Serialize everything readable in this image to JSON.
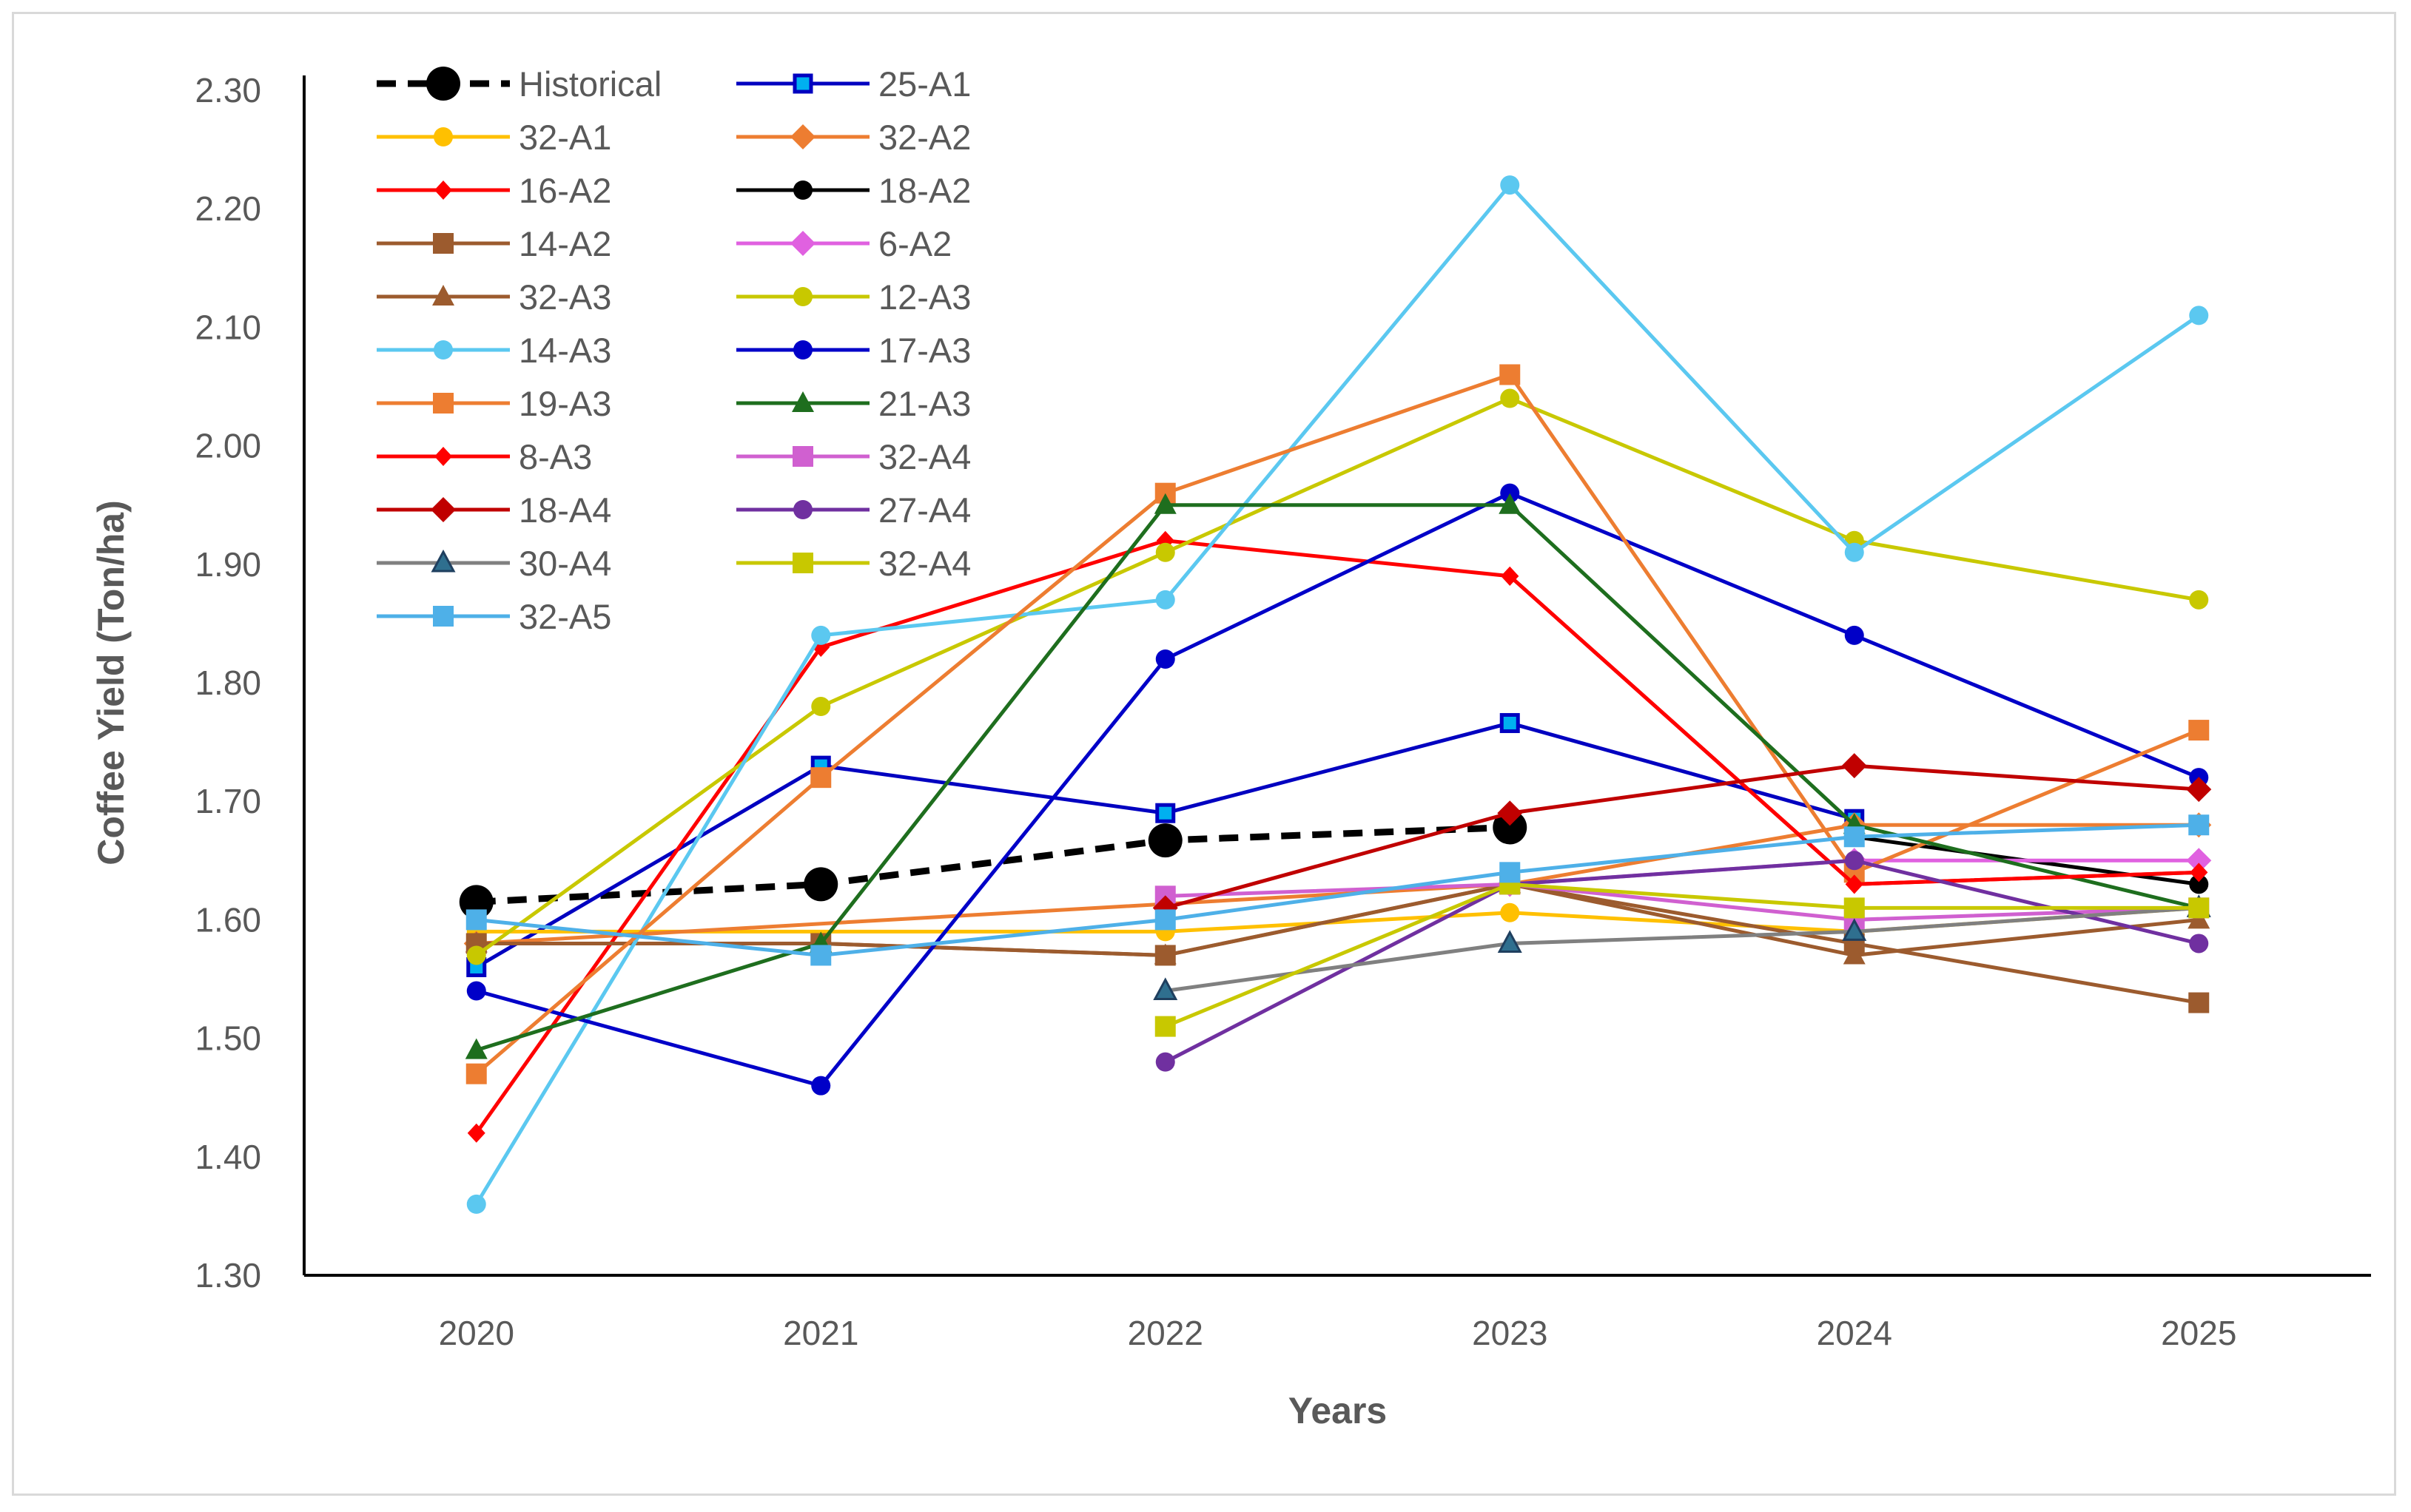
{
  "chart_data": {
    "type": "line",
    "title": "",
    "xlabel": "Years",
    "ylabel": "Coffee Yield (Ton/ha)",
    "ylim": [
      1.3,
      2.3
    ],
    "y_ticks": [
      "1.30",
      "1.40",
      "1.50",
      "1.60",
      "1.70",
      "1.80",
      "1.90",
      "2.00",
      "2.10",
      "2.20",
      "2.30"
    ],
    "categories": [
      "2020",
      "2021",
      "2022",
      "2023",
      "2024",
      "2025"
    ],
    "legend_position": "top-left",
    "series": [
      {
        "name": "Historical",
        "color": "#000000",
        "marker": "circle-large",
        "dashed": true,
        "values": [
          1.615,
          1.63,
          1.667,
          1.678,
          null,
          null
        ]
      },
      {
        "name": "25-A1",
        "color": "#0000c0",
        "marker": "square-blue",
        "values": [
          1.56,
          1.73,
          1.69,
          1.766,
          1.685,
          null
        ]
      },
      {
        "name": "32-A1",
        "color": "#ffc000",
        "marker": "circle",
        "values": [
          1.59,
          null,
          1.59,
          1.606,
          1.59,
          1.61
        ]
      },
      {
        "name": "32-A2",
        "color": "#ed7d31",
        "marker": "diamond",
        "values": [
          1.58,
          null,
          null,
          1.63,
          1.68,
          1.68
        ]
      },
      {
        "name": "16-A2",
        "color": "#ff0000",
        "marker": "diamond-small",
        "values": [
          1.42,
          1.83,
          1.92,
          1.89,
          1.63,
          1.64
        ]
      },
      {
        "name": "18-A2",
        "color": "#000000",
        "marker": "circle",
        "values": [
          null,
          null,
          null,
          null,
          1.67,
          1.63
        ]
      },
      {
        "name": "14-A2",
        "color": "#9c5b2e",
        "marker": "square",
        "values": [
          1.58,
          1.58,
          1.57,
          1.63,
          1.58,
          1.53
        ]
      },
      {
        "name": "6-A2",
        "color": "#e061e0",
        "marker": "diamond",
        "values": [
          null,
          null,
          null,
          1.63,
          1.65,
          1.65
        ]
      },
      {
        "name": "32-A3",
        "color": "#9c5b2e",
        "marker": "triangle",
        "values": [
          1.58,
          1.58,
          1.57,
          1.63,
          1.57,
          1.6
        ]
      },
      {
        "name": "12-A3",
        "color": "#c8c800",
        "marker": "circle",
        "values": [
          1.57,
          1.78,
          1.91,
          2.04,
          1.92,
          1.87
        ]
      },
      {
        "name": "14-A3",
        "color": "#5bc8f0",
        "marker": "circle",
        "values": [
          1.36,
          1.84,
          1.87,
          2.22,
          1.91,
          2.11
        ]
      },
      {
        "name": "17-A3",
        "color": "#0000c8",
        "marker": "circle",
        "values": [
          1.54,
          1.46,
          1.82,
          1.96,
          1.84,
          1.72
        ]
      },
      {
        "name": "19-A3",
        "color": "#ed7d31",
        "marker": "square",
        "values": [
          1.47,
          1.72,
          1.96,
          2.06,
          1.64,
          1.76
        ]
      },
      {
        "name": "21-A3",
        "color": "#1e6e1e",
        "marker": "triangle",
        "values": [
          1.49,
          1.58,
          1.95,
          1.95,
          1.68,
          1.61
        ]
      },
      {
        "name": "8-A3",
        "color": "#ff0000",
        "marker": "diamond-small",
        "values": [
          null,
          null,
          null,
          1.89,
          1.63,
          1.64
        ]
      },
      {
        "name": "32-A4",
        "color": "#d060d0",
        "marker": "square",
        "values": [
          null,
          null,
          1.62,
          1.63,
          1.6,
          1.61
        ]
      },
      {
        "name": "18-A4",
        "color": "#c00000",
        "marker": "diamond",
        "values": [
          null,
          null,
          1.61,
          1.69,
          1.73,
          1.71
        ]
      },
      {
        "name": "27-A4",
        "color": "#7030a0",
        "marker": "circle",
        "values": [
          null,
          null,
          1.48,
          1.63,
          1.65,
          1.58
        ]
      },
      {
        "name": "30-A4",
        "color": "#808080",
        "marker": "triangle-dark",
        "values": [
          null,
          null,
          1.54,
          1.58,
          1.59,
          1.61
        ]
      },
      {
        "name": "32-A4",
        "color": "#c8c800",
        "marker": "square",
        "values": [
          null,
          null,
          1.51,
          1.63,
          1.61,
          1.61
        ]
      },
      {
        "name": "32-A5",
        "color": "#4eb0e8",
        "marker": "square",
        "values": [
          1.6,
          1.57,
          1.6,
          1.64,
          1.67,
          1.68
        ]
      }
    ]
  }
}
